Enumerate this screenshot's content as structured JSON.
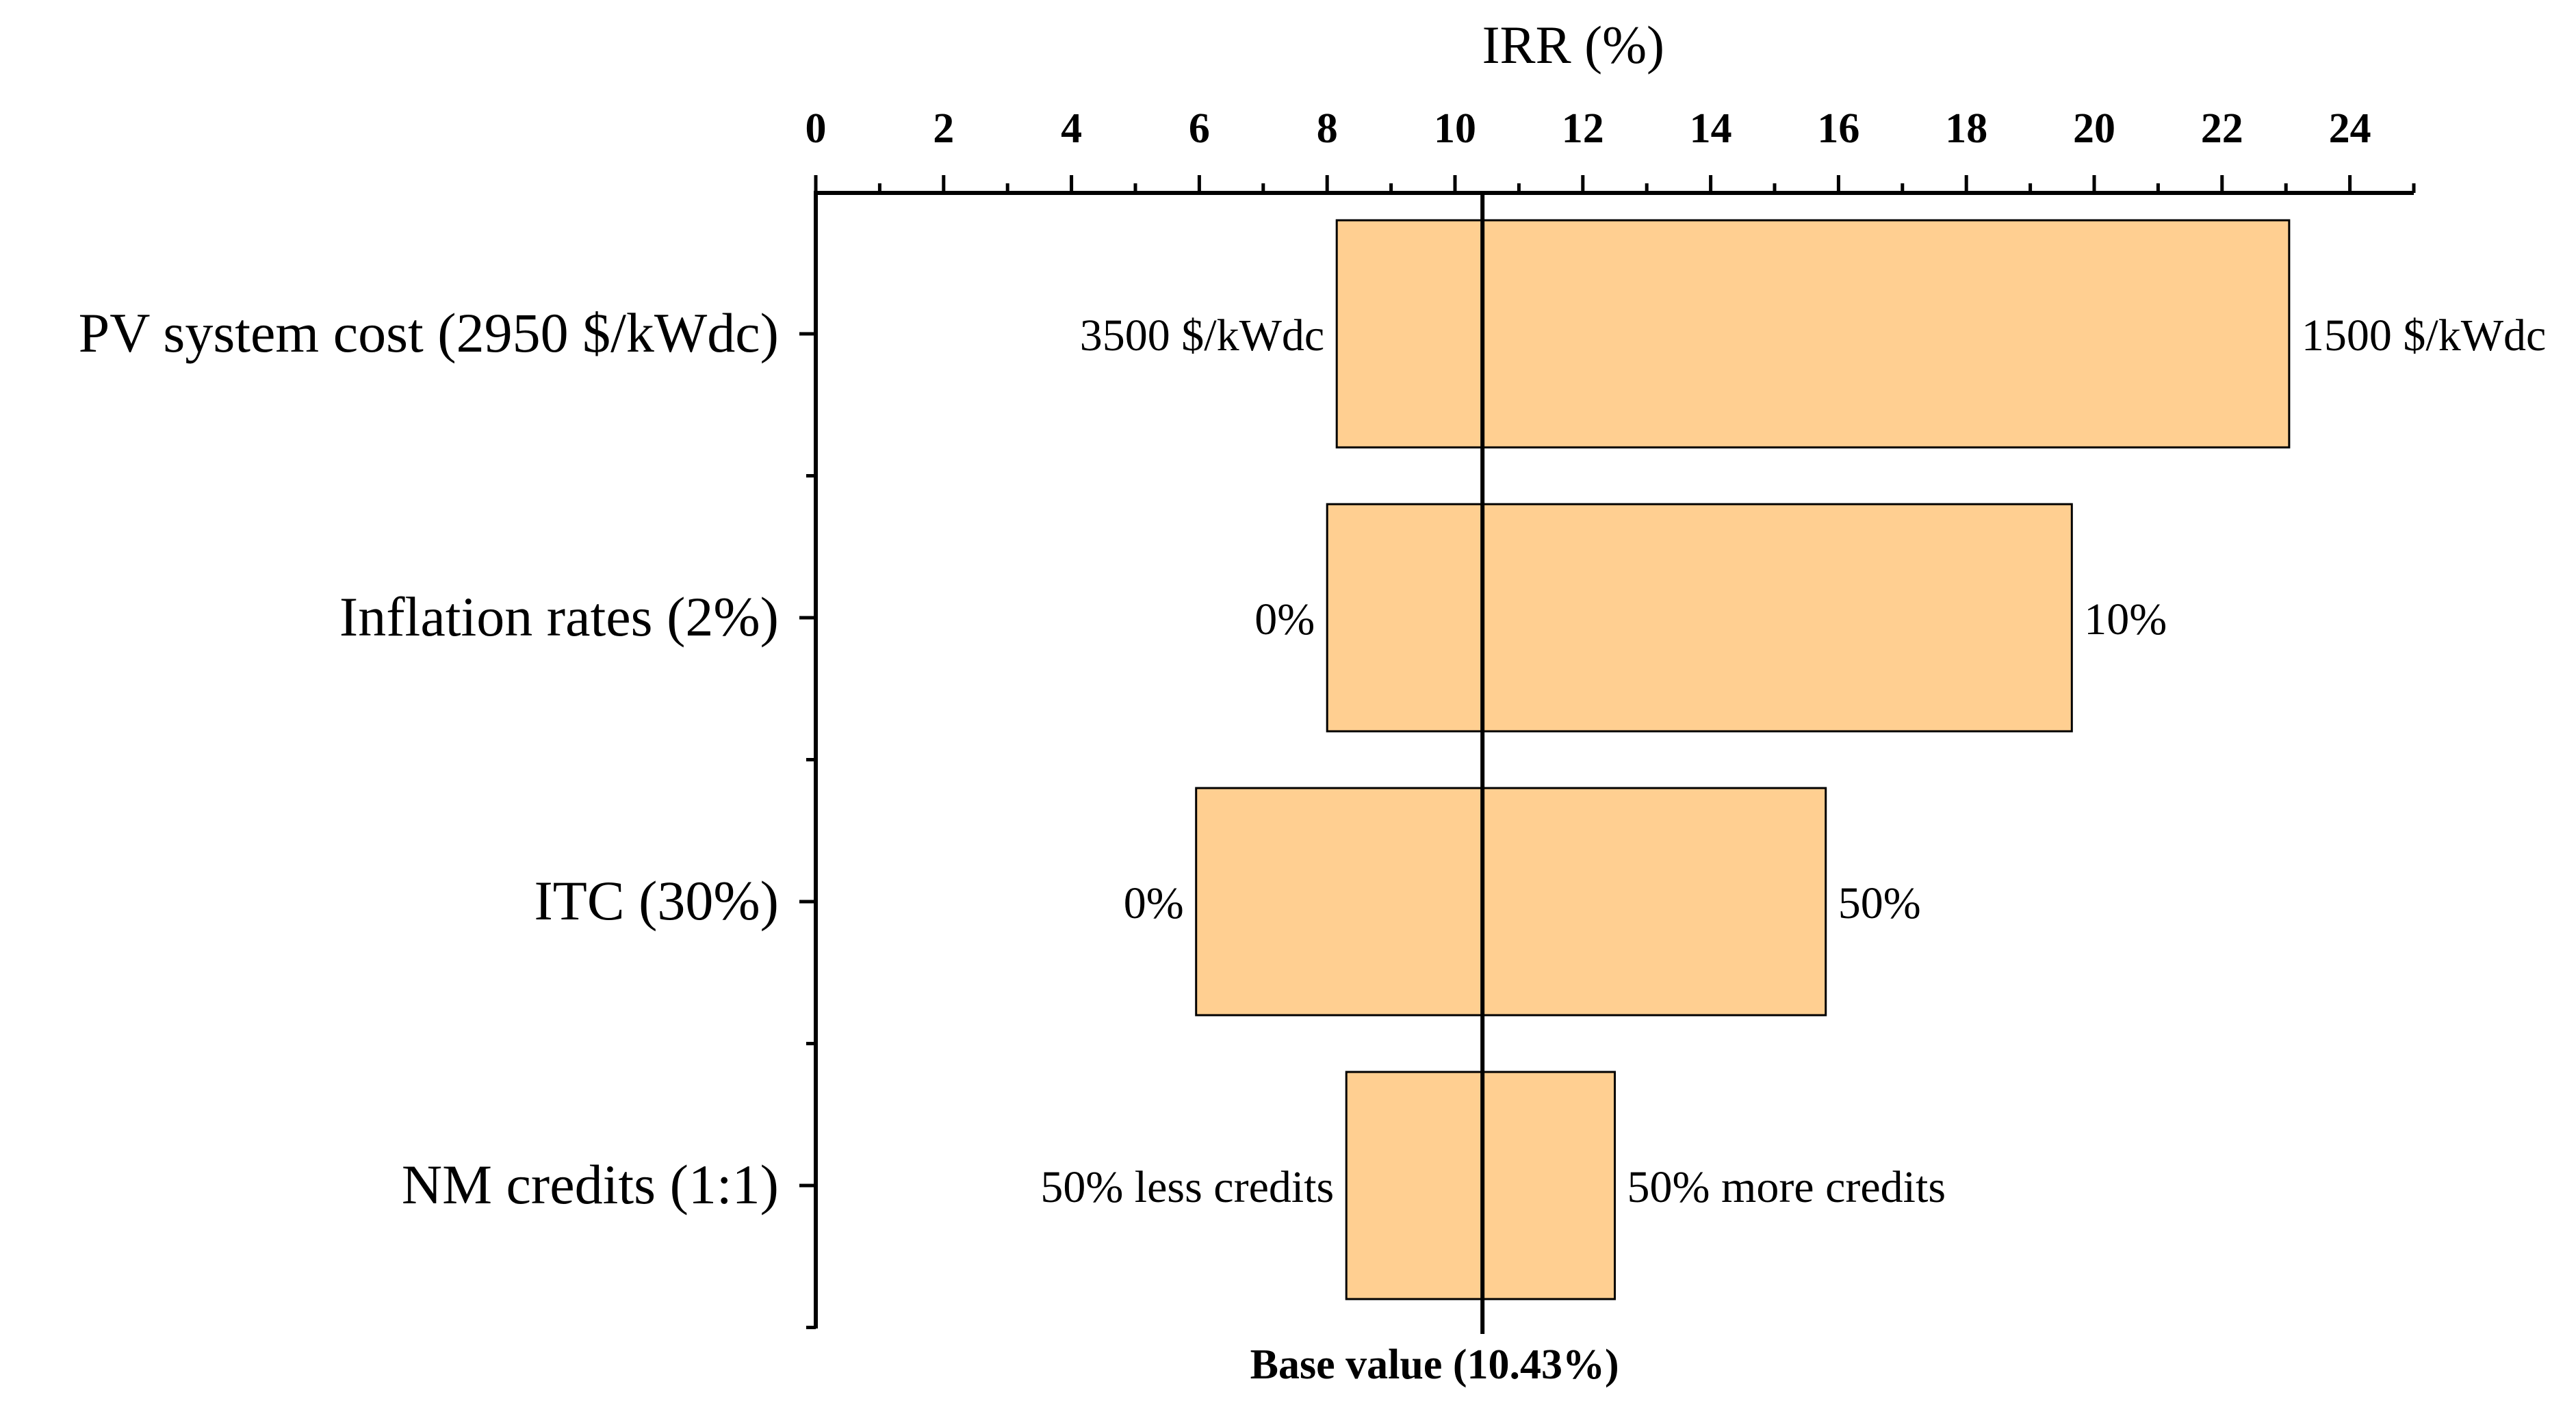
{
  "chart_data": {
    "type": "bar",
    "orientation": "horizontal-tornado",
    "title": "",
    "xlabel": "IRR (%)",
    "xlim": [
      0,
      25
    ],
    "x_ticks": [
      0,
      2,
      4,
      6,
      8,
      10,
      12,
      14,
      16,
      18,
      20,
      22,
      24
    ],
    "x_tick_labels": [
      "0",
      "2",
      "4",
      "6",
      "8",
      "10",
      "12",
      "14",
      "16",
      "18",
      "20",
      "22",
      "24"
    ],
    "x_axis_position": "top",
    "categories": [
      "PV system cost (2950 $/kWdc)",
      "Inflation rates (2%)",
      "ITC (30%)",
      "NM credits (1:1)"
    ],
    "base_value": 10.43,
    "base_label": "Base value (10.43%)",
    "bars": [
      {
        "category": "PV system cost (2950 $/kWdc)",
        "low": 8.15,
        "high": 23.05,
        "low_label": "3500 $/kWdc",
        "high_label": "1500 $/kWdc"
      },
      {
        "category": "Inflation rates (2%)",
        "low": 8.0,
        "high": 19.65,
        "low_label": "0%",
        "high_label": "10%"
      },
      {
        "category": "ITC (30%)",
        "low": 5.95,
        "high": 15.8,
        "low_label": "0%",
        "high_label": "50%"
      },
      {
        "category": "NM credits (1:1)",
        "low": 8.3,
        "high": 12.5,
        "low_label": "50% less credits",
        "high_label": "50% more credits"
      }
    ],
    "bar_color": "#FFCF91",
    "grid": false,
    "legend": "none"
  }
}
